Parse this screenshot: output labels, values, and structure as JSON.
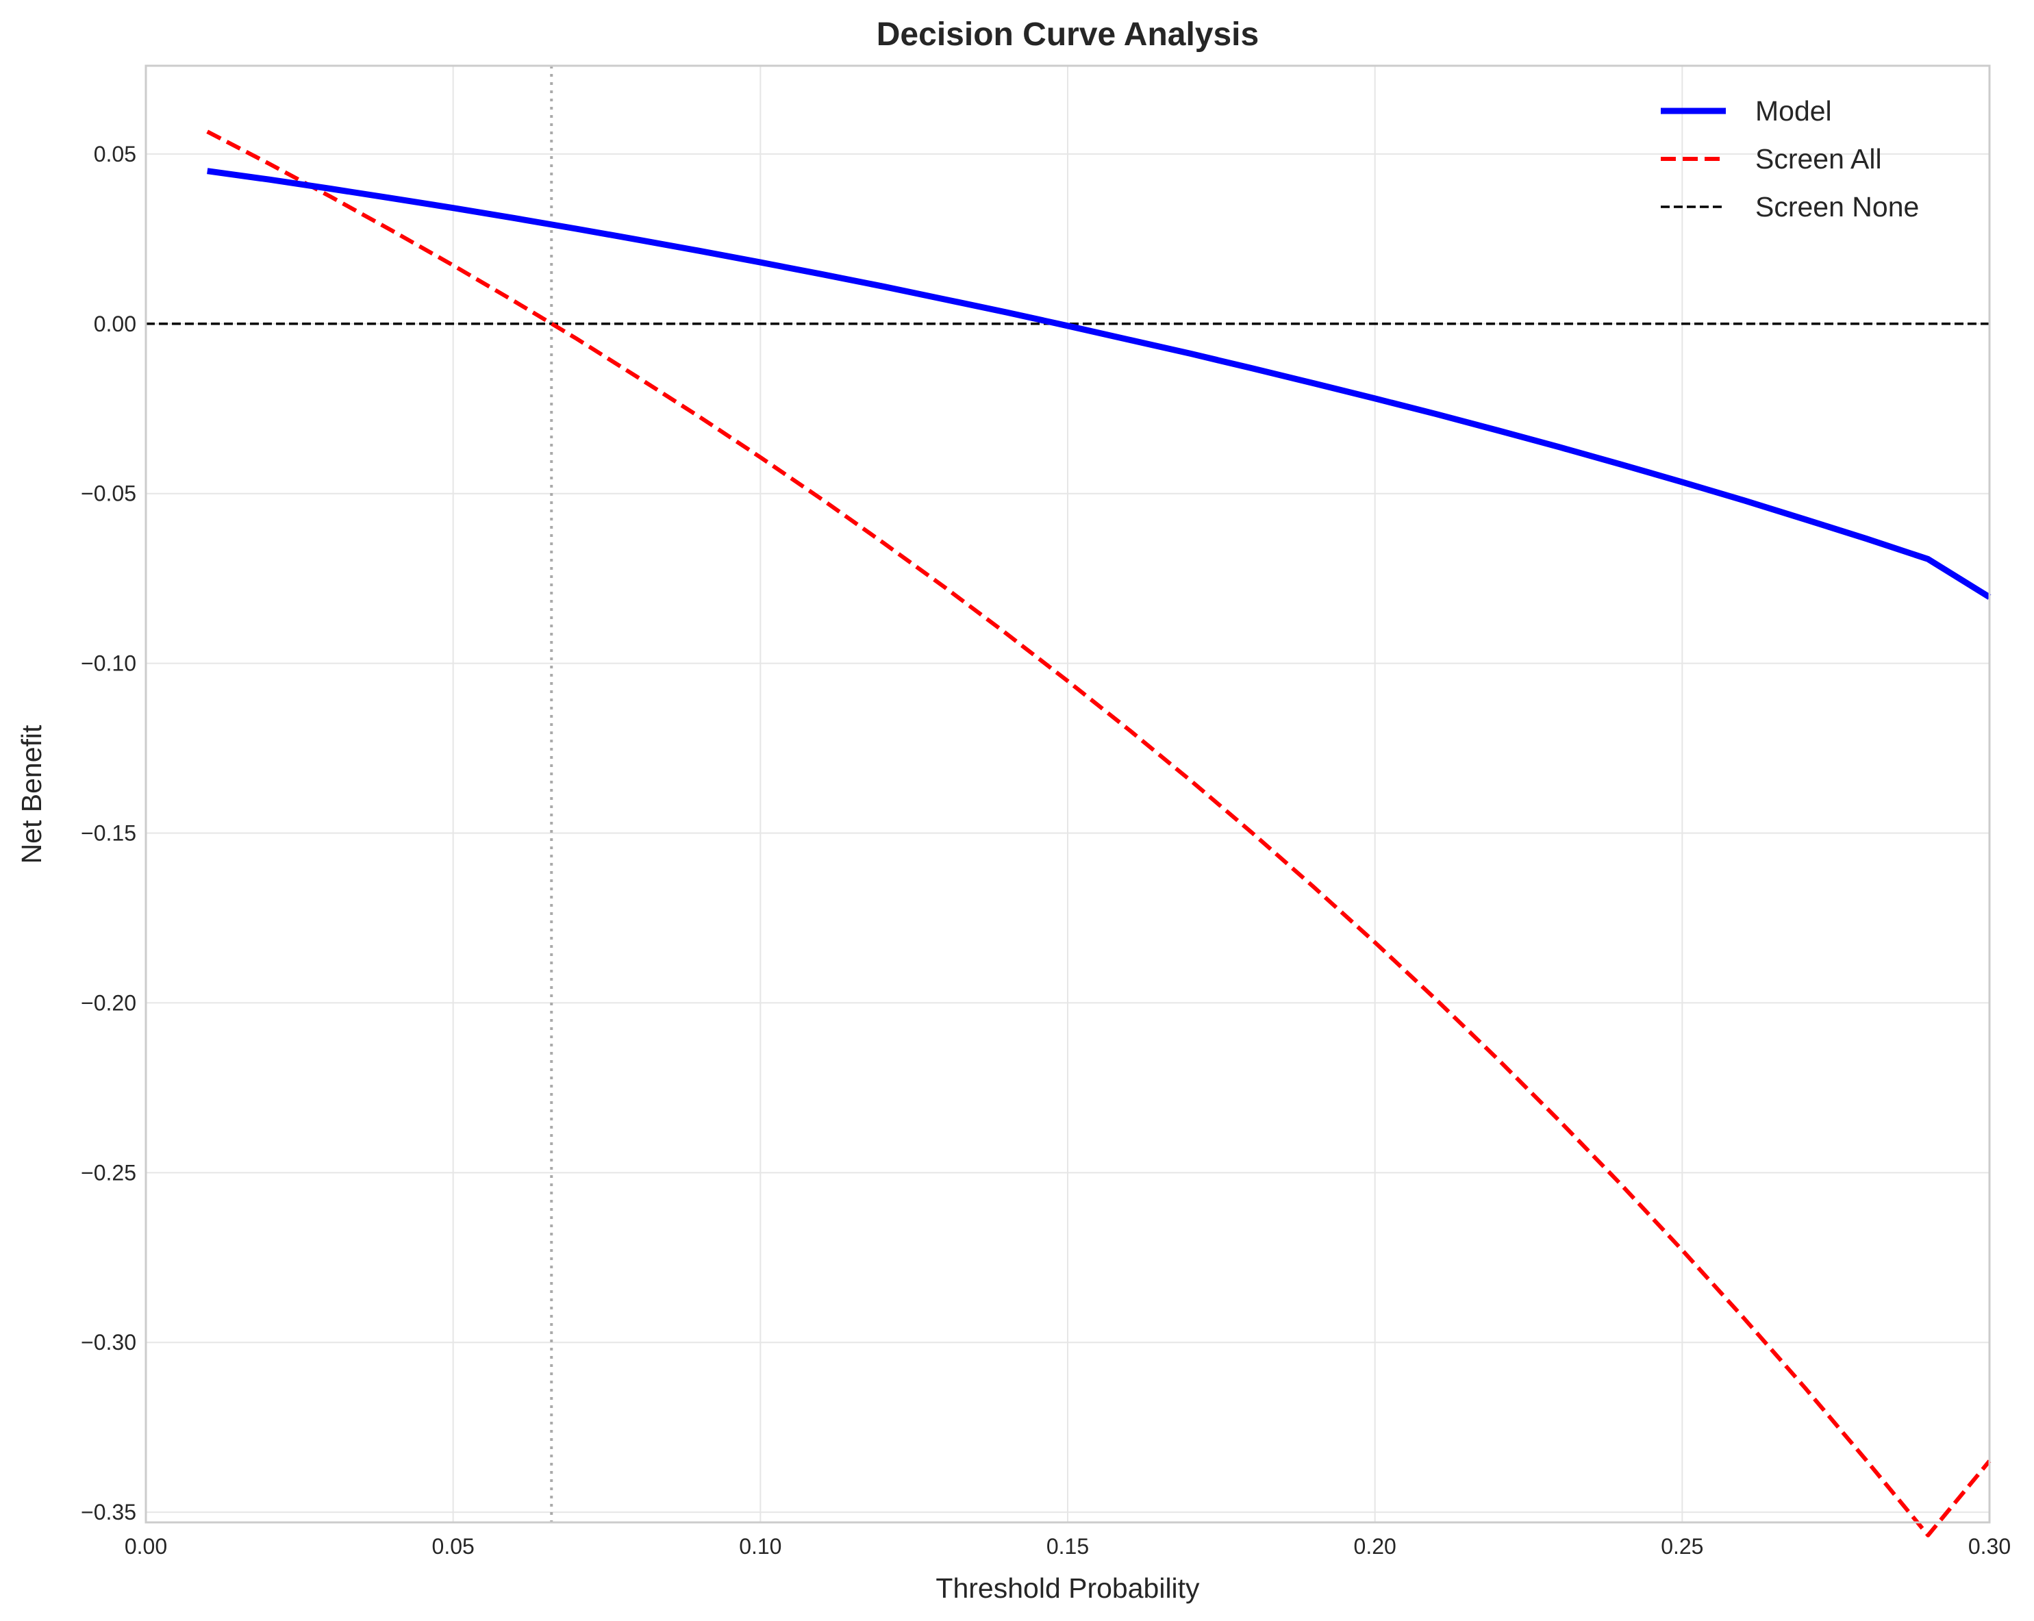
{
  "chart_data": {
    "type": "line",
    "title": "Decision Curve Analysis",
    "xlabel": "Threshold Probability",
    "ylabel": "Net Benefit",
    "xlim": [
      0.0,
      0.3
    ],
    "ylim": [
      -0.353,
      0.076
    ],
    "xticks": [
      "0.00",
      "0.05",
      "0.10",
      "0.15",
      "0.20",
      "0.25",
      "0.30"
    ],
    "xtick_values": [
      0.0,
      0.05,
      0.1,
      0.15,
      0.2,
      0.25,
      0.3
    ],
    "yticks": [
      "0.05",
      "0.00",
      "−0.05",
      "−0.10",
      "−0.15",
      "−0.20",
      "−0.25",
      "−0.30",
      "−0.35"
    ],
    "ytick_values": [
      0.05,
      0.0,
      -0.05,
      -0.1,
      -0.15,
      -0.2,
      -0.25,
      -0.3,
      -0.35
    ],
    "grid": true,
    "legend_position": "top-right",
    "reference_vline": {
      "x": 0.066,
      "style": "dotted",
      "color": "#aaaaaa"
    },
    "series": [
      {
        "name": "Model",
        "color": "#0000ff",
        "style": "solid",
        "x": [
          0.01,
          0.02,
          0.03,
          0.04,
          0.05,
          0.06,
          0.07,
          0.08,
          0.09,
          0.1,
          0.11,
          0.12,
          0.13,
          0.14,
          0.15,
          0.16,
          0.17,
          0.18,
          0.19,
          0.2,
          0.21,
          0.22,
          0.23,
          0.24,
          0.25,
          0.26,
          0.27,
          0.28,
          0.29,
          0.3
        ],
        "y": [
          0.045,
          0.0425,
          0.0398,
          0.037,
          0.0341,
          0.0311,
          0.028,
          0.0248,
          0.0215,
          0.0181,
          0.0146,
          0.011,
          0.0072,
          0.0034,
          -0.0006,
          -0.0047,
          -0.0088,
          -0.0131,
          -0.0175,
          -0.022,
          -0.0266,
          -0.0314,
          -0.0363,
          -0.0414,
          -0.0466,
          -0.052,
          -0.0576,
          -0.0633,
          -0.0693,
          -0.0805
        ]
      },
      {
        "name": "Screen All",
        "color": "#ff0000",
        "style": "dashed",
        "x": [
          0.01,
          0.02,
          0.03,
          0.04,
          0.05,
          0.06,
          0.07,
          0.08,
          0.09,
          0.1,
          0.11,
          0.12,
          0.13,
          0.14,
          0.15,
          0.16,
          0.17,
          0.18,
          0.19,
          0.2,
          0.21,
          0.22,
          0.23,
          0.24,
          0.25,
          0.26,
          0.27,
          0.28,
          0.29,
          0.3
        ],
        "y": [
          0.0566,
          0.0472,
          0.0375,
          0.0275,
          0.0172,
          0.0066,
          -0.0043,
          -0.0157,
          -0.0273,
          -0.0393,
          -0.0517,
          -0.0645,
          -0.0776,
          -0.0912,
          -0.1052,
          -0.1196,
          -0.1345,
          -0.1499,
          -0.1658,
          -0.1822,
          -0.1991,
          -0.2166,
          -0.2347,
          -0.2534,
          -0.2728,
          -0.2928,
          -0.3134,
          -0.3348,
          -0.3568,
          -0.3349
        ]
      },
      {
        "name": "Screen None",
        "color": "#000000",
        "style": "dashed",
        "x": [
          0.0,
          0.3
        ],
        "y": [
          0.0,
          0.0
        ]
      }
    ]
  }
}
